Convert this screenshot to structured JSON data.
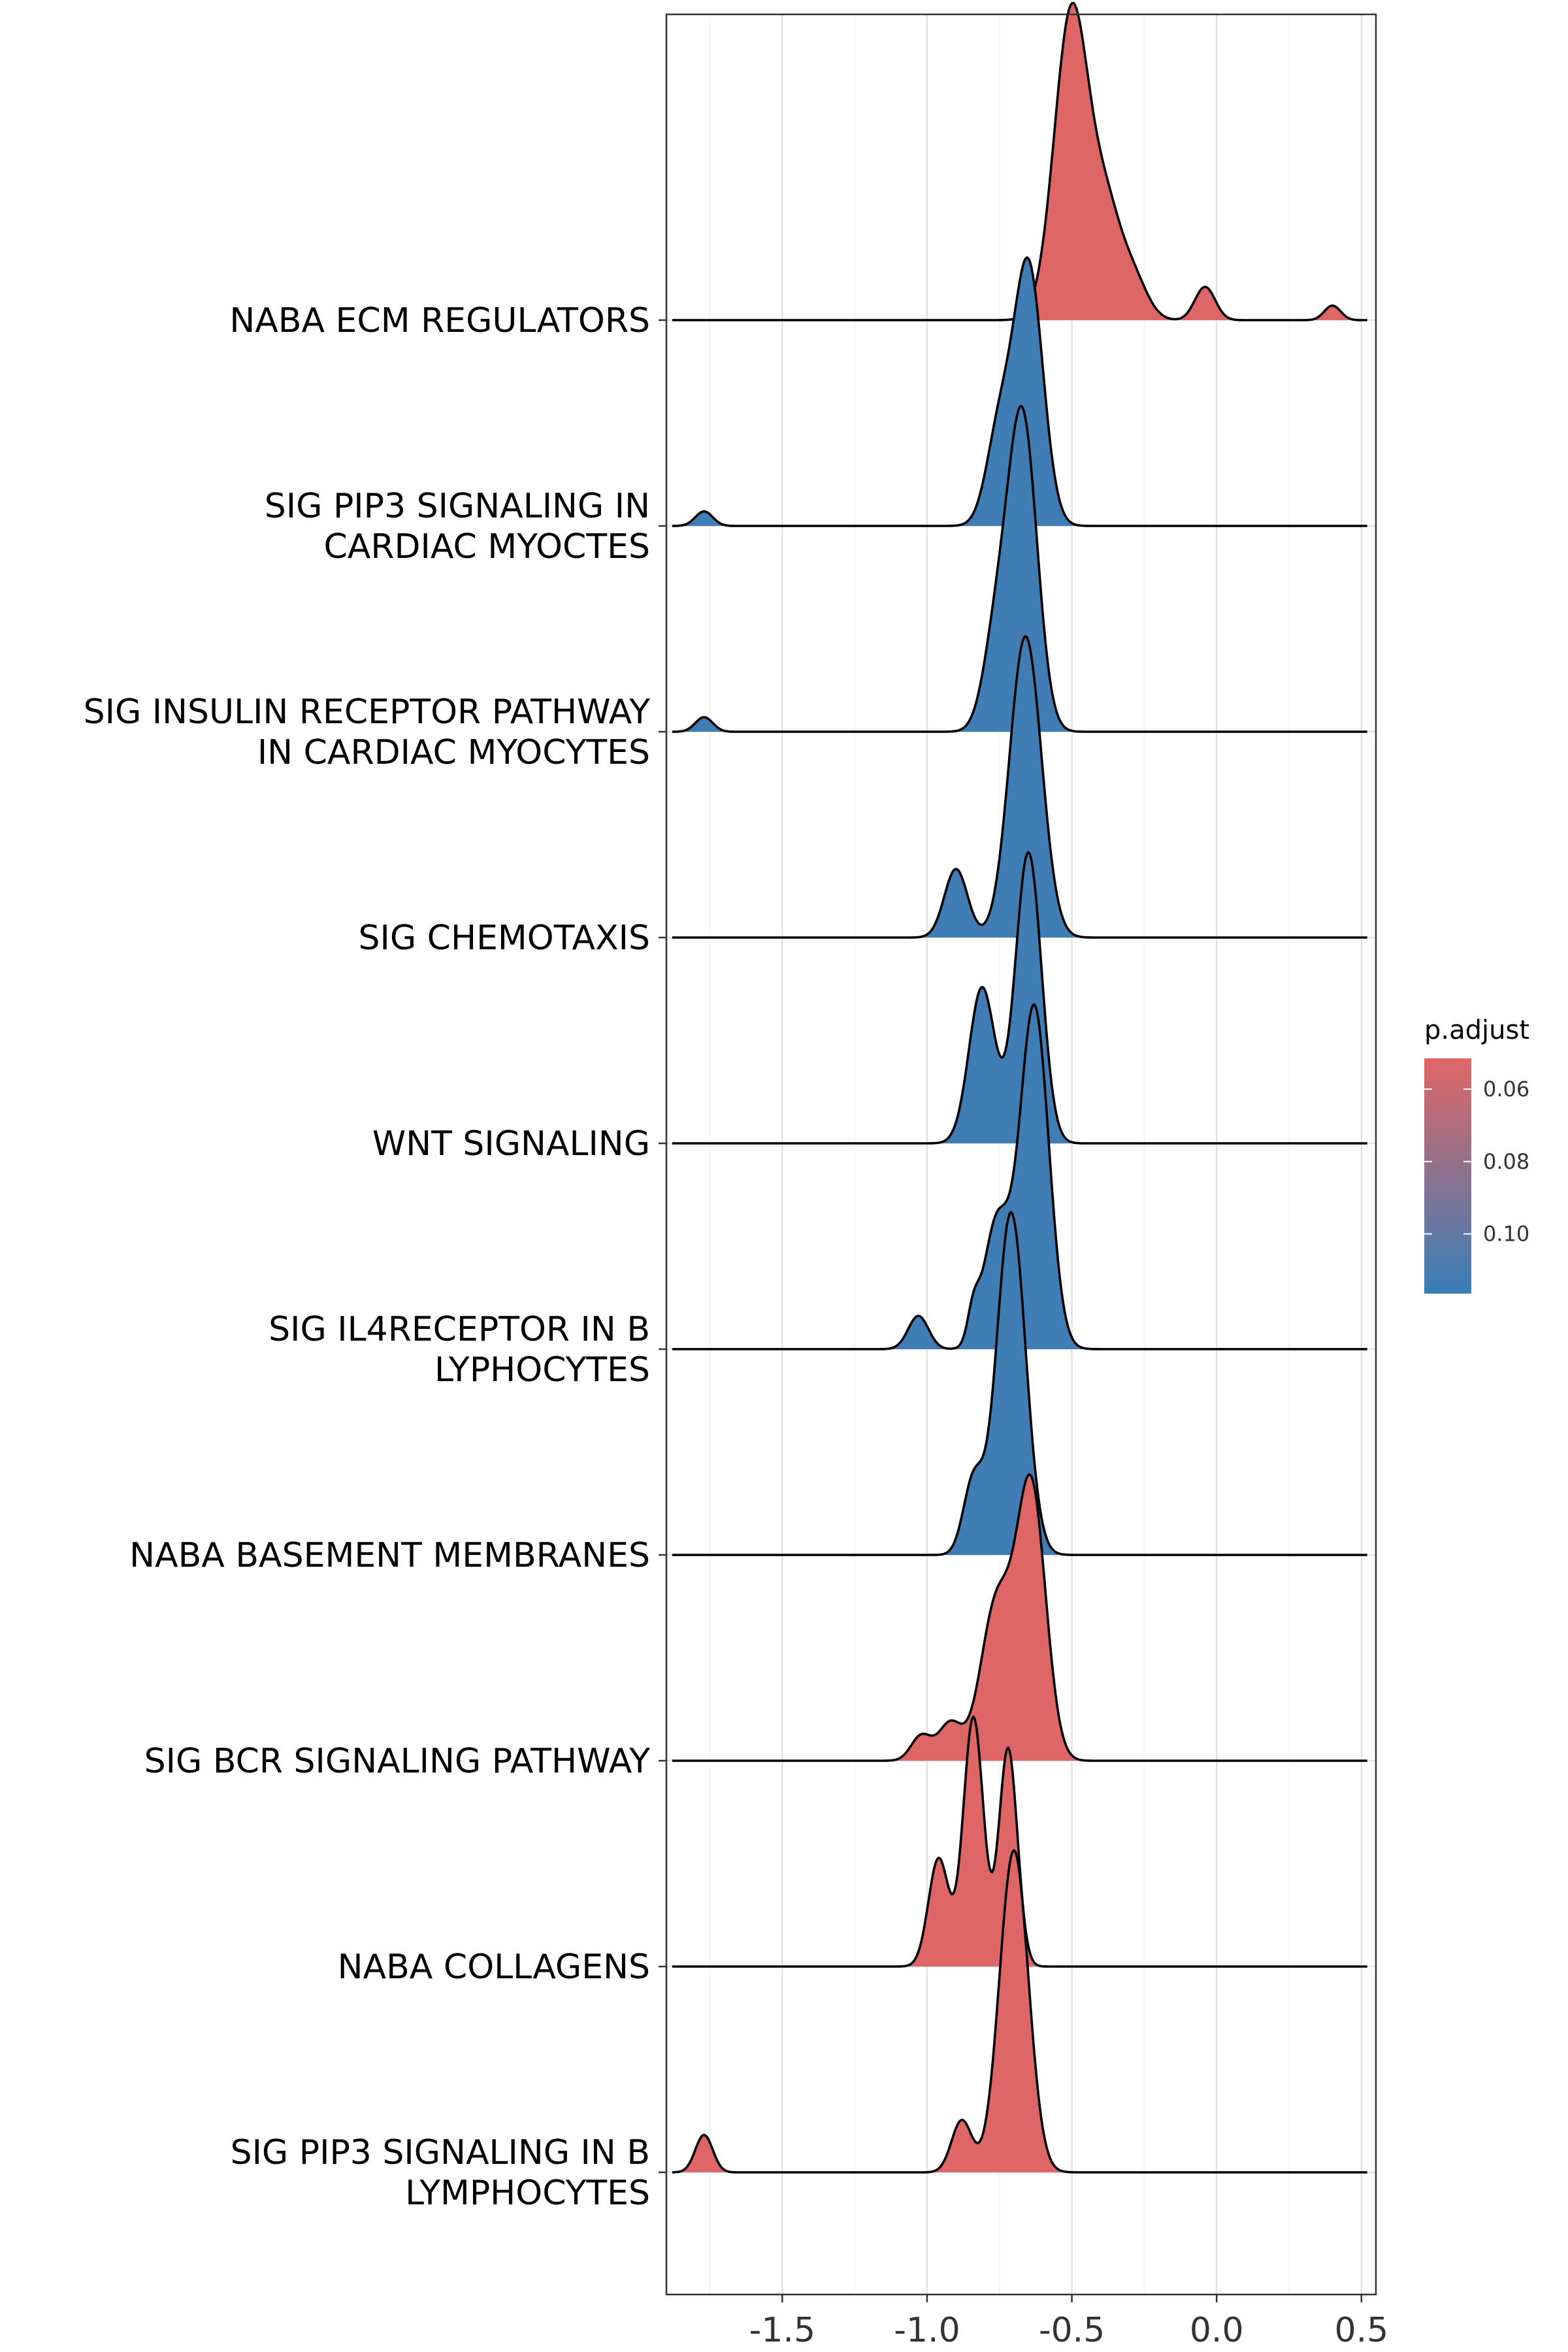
{
  "chart_data": {
    "type": "ridgeline",
    "title": "",
    "xlabel": "",
    "ylabel": "",
    "xlim": [
      -1.9,
      0.55
    ],
    "x_ticks": [
      -1.5,
      -1.0,
      -0.5,
      0.0,
      0.5
    ],
    "x_tick_labels": [
      "-1.5",
      "-1.0",
      "-0.5",
      "0.0",
      "0.5"
    ],
    "grid": true,
    "legend": {
      "title": "p.adjust",
      "position": "right",
      "ticks": [
        0.06,
        0.08,
        0.1
      ],
      "tick_labels": [
        "0.06",
        "0.08",
        "0.10"
      ],
      "range": [
        0.0515,
        0.1165
      ],
      "low_color": "#E06666",
      "high_color": "#377EB8"
    },
    "series": [
      {
        "name": "NABA ECM REGULATORS",
        "label_lines": [
          "NABA ECM REGULATORS"
        ],
        "p_adjust": 0.052,
        "peaks": [
          [
            -0.5,
            0.06,
            1.5
          ],
          [
            -0.38,
            0.05,
            0.45
          ],
          [
            -0.29,
            0.05,
            0.2
          ],
          [
            -0.04,
            0.035,
            0.16
          ],
          [
            0.4,
            0.028,
            0.07
          ]
        ]
      },
      {
        "name": "SIG PIP3 SIGNALING IN CARDIAC MYOCTES",
        "label_lines": [
          "SIG PIP3 SIGNALING IN",
          "CARDIAC MYOCTES"
        ],
        "p_adjust": 0.113,
        "peaks": [
          [
            -0.65,
            0.05,
            1.25
          ],
          [
            -0.75,
            0.045,
            0.45
          ],
          [
            -1.77,
            0.03,
            0.07
          ]
        ]
      },
      {
        "name": "SIG INSULIN RECEPTOR PATHWAY IN CARDIAC MYOCYTES",
        "label_lines": [
          "SIG INSULIN RECEPTOR PATHWAY",
          "IN CARDIAC MYOCYTES"
        ],
        "p_adjust": 0.113,
        "peaks": [
          [
            -0.67,
            0.05,
            1.5
          ],
          [
            -0.76,
            0.045,
            0.45
          ],
          [
            -1.77,
            0.03,
            0.07
          ]
        ]
      },
      {
        "name": "SIG CHEMOTAXIS",
        "label_lines": [
          "SIG CHEMOTAXIS"
        ],
        "p_adjust": 0.113,
        "peaks": [
          [
            -0.66,
            0.055,
            1.45
          ],
          [
            -0.9,
            0.04,
            0.33
          ]
        ]
      },
      {
        "name": "WNT SIGNALING",
        "label_lines": [
          "WNT SIGNALING"
        ],
        "p_adjust": 0.113,
        "peaks": [
          [
            -0.65,
            0.045,
            1.4
          ],
          [
            -0.81,
            0.045,
            0.75
          ]
        ]
      },
      {
        "name": "SIG IL4RECEPTOR IN B LYPHOCYTES",
        "label_lines": [
          "SIG IL4RECEPTOR IN B",
          "LYPHOCYTES"
        ],
        "p_adjust": 0.113,
        "peaks": [
          [
            -0.63,
            0.05,
            1.65
          ],
          [
            -0.76,
            0.045,
            0.6
          ],
          [
            -0.84,
            0.02,
            0.15
          ],
          [
            -1.03,
            0.035,
            0.16
          ]
        ]
      },
      {
        "name": "NABA BASEMENT MEMBRANES",
        "label_lines": [
          "NABA BASEMENT MEMBRANES"
        ],
        "p_adjust": 0.113,
        "peaks": [
          [
            -0.71,
            0.05,
            1.65
          ],
          [
            -0.84,
            0.035,
            0.35
          ]
        ]
      },
      {
        "name": "SIG BCR SIGNALING PATHWAY",
        "label_lines": [
          "SIG BCR SIGNALING PATHWAY"
        ],
        "p_adjust": 0.052,
        "peaks": [
          [
            -0.64,
            0.05,
            1.3
          ],
          [
            -0.76,
            0.055,
            0.75
          ],
          [
            -0.92,
            0.04,
            0.18
          ],
          [
            -1.02,
            0.035,
            0.12
          ]
        ]
      },
      {
        "name": "NABA COLLAGENS",
        "label_lines": [
          "NABA COLLAGENS"
        ],
        "p_adjust": 0.052,
        "peaks": [
          [
            -0.84,
            0.035,
            1.2
          ],
          [
            -0.72,
            0.032,
            1.05
          ],
          [
            -0.96,
            0.035,
            0.52
          ]
        ]
      },
      {
        "name": "SIG PIP3 SIGNALING IN B LYMPHOCYTES",
        "label_lines": [
          "SIG PIP3 SIGNALING IN B",
          "LYMPHOCYTES"
        ],
        "p_adjust": 0.052,
        "peaks": [
          [
            -0.7,
            0.05,
            1.55
          ],
          [
            -0.88,
            0.035,
            0.25
          ],
          [
            -1.77,
            0.03,
            0.18
          ]
        ]
      }
    ]
  }
}
